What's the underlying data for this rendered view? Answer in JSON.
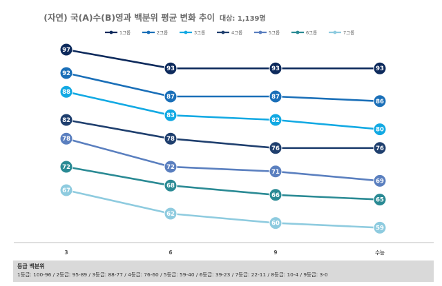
{
  "chart_data": {
    "type": "line",
    "title": "(자연) 국(A)수(B)영과 백분위 평균 변화 추이",
    "subtitle": "대상: 1,139명",
    "categories": [
      "3",
      "6",
      "9",
      "수능"
    ],
    "series": [
      {
        "name": "1그룹",
        "color": "#0d2a5c",
        "values": [
          97,
          93,
          93,
          93
        ]
      },
      {
        "name": "2그룹",
        "color": "#1a6fb8",
        "values": [
          92,
          87,
          87,
          86
        ]
      },
      {
        "name": "3그룹",
        "color": "#12a9e3",
        "values": [
          88,
          83,
          82,
          80
        ]
      },
      {
        "name": "4그룹",
        "color": "#1f3f6e",
        "values": [
          82,
          78,
          76,
          76
        ]
      },
      {
        "name": "5그룹",
        "color": "#5a7fbf",
        "values": [
          78,
          72,
          71,
          69
        ]
      },
      {
        "name": "6그룹",
        "color": "#2a8a94",
        "values": [
          72,
          68,
          66,
          65
        ]
      },
      {
        "name": "7그룹",
        "color": "#8ecbdf",
        "values": [
          67,
          62,
          60,
          59
        ]
      }
    ],
    "legend_position": "top",
    "grid": false
  },
  "footer": {
    "title": "등급 백분위",
    "text": "1등급: 100-96 / 2등급: 95-89 / 3등급: 88-77 / 4등급: 76-60 / 5등급: 59-40 / 6등급: 39-23 / 7등급: 22-11 / 8등급: 10-4 / 9등급: 3-0"
  }
}
